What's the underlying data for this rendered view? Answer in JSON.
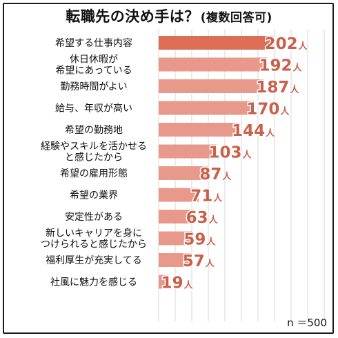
{
  "title": {
    "main": "転職先の決め手は？",
    "sub": "(複数回答可)"
  },
  "sample_size_label": "n ＝500",
  "unit": "人",
  "colors": {
    "bar": "#e8998b",
    "top_bar": "#de6d55",
    "value_text": "#c9604a",
    "grid": "#d7d7d7",
    "label_text": "#111111"
  },
  "chart_data": {
    "type": "bar",
    "orientation": "horizontal",
    "categories": [
      "希望する仕事内容",
      "休日休暇が\n希望にあっている",
      "勤務時間がよい",
      "給与、年収が高い",
      "希望の勤務地",
      "経験やスキルを活かせる\nと感じたから",
      "希望の雇用形態",
      "希望の業界",
      "安定性がある",
      "新しいキャリアを身に\nつけられると感じたから",
      "福利厚生が充実してる",
      "社風に魅力を感じる"
    ],
    "values": [
      202,
      192,
      187,
      170,
      144,
      103,
      87,
      71,
      63,
      59,
      57,
      19
    ],
    "value_unit": "人",
    "highlight_index": 0,
    "xlim": [
      0,
      480
    ],
    "grid": true
  }
}
